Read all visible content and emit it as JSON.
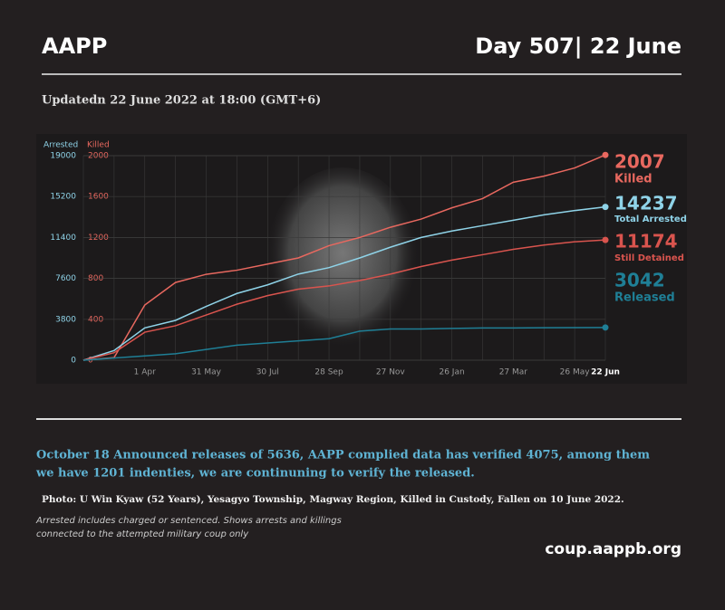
{
  "header": {
    "title": "AAPP",
    "day": "Day 507| 22 June",
    "updated": "Updatedn 22 June 2022 at 18:00 (GMT+6)"
  },
  "chart_data": {
    "type": "line",
    "ylabel": "Arrested",
    "y2label": "Killed",
    "categories": [
      null,
      null,
      "1 Apr",
      null,
      "31 May",
      null,
      "30 Jul",
      null,
      "28 Sep",
      null,
      "27 Nov",
      null,
      "26 Jan",
      null,
      "27 Mar",
      null,
      "26 May",
      "22 Jun"
    ],
    "ylim": [
      0,
      19000
    ],
    "yticks": [
      0,
      3800,
      7600,
      11400,
      15200,
      19000
    ],
    "y2lim": [
      0,
      2000
    ],
    "y2ticks": [
      0,
      400,
      800,
      1200,
      1600,
      2000
    ],
    "grid": true,
    "series": [
      {
        "name": "Killed",
        "axis": "y2",
        "color": "#e8685f",
        "values": [
          0,
          25,
          540,
          760,
          840,
          880,
          940,
          1000,
          1120,
          1200,
          1300,
          1380,
          1490,
          1580,
          1740,
          1800,
          1880,
          2007
        ]
      },
      {
        "name": "Total Arrested",
        "color": "#8fd3e8",
        "values": [
          0,
          900,
          3000,
          3700,
          5000,
          6200,
          7000,
          8000,
          8600,
          9500,
          10500,
          11400,
          12000,
          12500,
          13000,
          13500,
          13900,
          14237
        ]
      },
      {
        "name": "Still Detained",
        "color": "#d9544e",
        "values": [
          0,
          700,
          2600,
          3200,
          4200,
          5200,
          6000,
          6600,
          6900,
          7400,
          8000,
          8700,
          9300,
          9800,
          10300,
          10700,
          11000,
          11174
        ]
      },
      {
        "name": "Released",
        "color": "#1f7f96",
        "values": [
          0,
          200,
          400,
          600,
          1000,
          1400,
          1600,
          1800,
          2000,
          2700,
          2900,
          2900,
          2950,
          3000,
          3000,
          3020,
          3030,
          3042
        ]
      }
    ]
  },
  "notes": {
    "highlight": [
      "October 18 Announced releases of 5636, AAPP complied data has verified 4075, among them",
      "we have 1201 indenties, we are continuning to verify the released."
    ],
    "photo": "Photo:  U Win Kyaw (52 Years), Yesagyo Township, Magway Region, Killed in Custody, Fallen on 10 June 2022.",
    "small": [
      "Arrested includes charged or sentenced. Shows arrests and killings",
      "connected to the attempted military coup only"
    ],
    "url": "coup.aappb.org"
  }
}
